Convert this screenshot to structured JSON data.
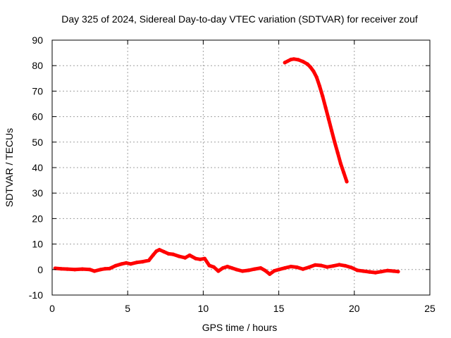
{
  "chart_data": {
    "type": "line",
    "title": "Day 325 of 2024, Sidereal Day-to-day VTEC variation (SDTVAR) for receiver zouf",
    "xlabel": "GPS time / hours",
    "ylabel": "SDTVAR / TECUs",
    "xlim": [
      0,
      25
    ],
    "ylim": [
      -10,
      90
    ],
    "xticks": [
      0,
      5,
      10,
      15,
      20,
      25
    ],
    "yticks": [
      -10,
      0,
      10,
      20,
      30,
      40,
      50,
      60,
      70,
      80,
      90
    ],
    "grid": true,
    "series_color": "#ff0000",
    "series": [
      {
        "name": "SDTVAR baseline",
        "x": [
          0.2,
          0.6,
          1.0,
          1.5,
          2.0,
          2.5,
          2.8,
          3.2,
          3.5,
          3.8,
          4.2,
          4.6,
          4.9,
          5.2,
          5.6,
          6.0,
          6.4,
          6.7,
          6.9,
          7.1,
          7.4,
          7.7,
          8.0,
          8.4,
          8.8,
          9.1,
          9.5,
          9.8,
          10.1,
          10.4,
          10.7,
          11.0,
          11.3,
          11.6,
          11.9,
          12.2,
          12.6,
          13.0,
          13.4,
          13.8,
          14.1,
          14.4,
          14.7,
          15.0,
          15.4,
          15.8,
          16.2,
          16.6,
          17.0,
          17.4,
          17.8,
          18.2,
          18.6,
          19.0,
          19.4,
          19.8,
          20.2,
          20.6,
          21.0,
          21.4,
          21.8,
          22.2,
          22.6,
          22.9
        ],
        "y": [
          0.5,
          0.3,
          0.2,
          0.0,
          0.2,
          0.0,
          -0.6,
          0.0,
          0.3,
          0.4,
          1.5,
          2.2,
          2.6,
          2.2,
          2.8,
          3.1,
          3.6,
          5.8,
          7.2,
          7.8,
          7.0,
          6.2,
          6.0,
          5.2,
          4.6,
          5.6,
          4.3,
          4.0,
          4.3,
          1.6,
          1.0,
          -0.6,
          0.6,
          1.2,
          0.6,
          0.0,
          -0.6,
          -0.3,
          0.2,
          0.6,
          -0.4,
          -1.8,
          -0.5,
          0.0,
          0.6,
          1.2,
          0.9,
          0.2,
          0.9,
          1.8,
          1.6,
          1.0,
          1.4,
          1.9,
          1.5,
          0.8,
          -0.3,
          -0.6,
          -0.9,
          -1.2,
          -0.8,
          -0.4,
          -0.6,
          -0.8
        ]
      },
      {
        "name": "SDTVAR spike",
        "x": [
          15.4,
          15.6,
          15.8,
          16.0,
          16.3,
          16.6,
          16.9,
          17.1,
          17.3,
          17.5,
          17.7,
          17.9,
          18.1,
          18.3,
          18.5,
          18.7,
          18.9,
          19.1,
          19.3,
          19.5
        ],
        "y": [
          81.2,
          81.8,
          82.4,
          82.6,
          82.3,
          81.6,
          80.6,
          79.4,
          77.8,
          75.5,
          72.0,
          68.0,
          63.5,
          59.0,
          54.5,
          50.0,
          45.8,
          41.5,
          38.0,
          34.5
        ]
      }
    ]
  }
}
